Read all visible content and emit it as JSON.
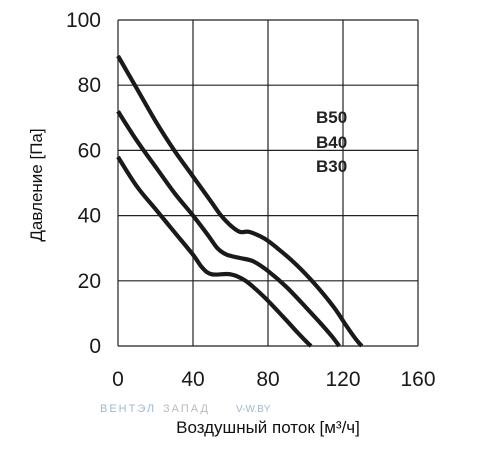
{
  "chart_data": {
    "type": "line",
    "xlabel": "Воздушный поток [м³/ч]",
    "ylabel": "Давление [Па]",
    "xlim": [
      0,
      160
    ],
    "ylim": [
      0,
      100
    ],
    "x_ticks": [
      "0",
      "40",
      "80",
      "120",
      "160"
    ],
    "y_ticks": [
      "0",
      "20",
      "40",
      "60",
      "80",
      "100"
    ],
    "grid": true,
    "legend_position": "upper-right",
    "series": [
      {
        "name": "B50",
        "points": [
          [
            0,
            89
          ],
          [
            10,
            79
          ],
          [
            20,
            69
          ],
          [
            30,
            60
          ],
          [
            40,
            52
          ],
          [
            50,
            44
          ],
          [
            55,
            40
          ],
          [
            60,
            37
          ],
          [
            65,
            35
          ],
          [
            70,
            35
          ],
          [
            78,
            33
          ],
          [
            85,
            30
          ],
          [
            95,
            25
          ],
          [
            105,
            19
          ],
          [
            115,
            12
          ],
          [
            122,
            6
          ],
          [
            127,
            2
          ],
          [
            130,
            0
          ]
        ]
      },
      {
        "name": "B40",
        "points": [
          [
            0,
            72
          ],
          [
            10,
            63
          ],
          [
            20,
            55
          ],
          [
            30,
            47
          ],
          [
            40,
            40
          ],
          [
            48,
            34
          ],
          [
            53,
            30
          ],
          [
            58,
            28
          ],
          [
            65,
            27
          ],
          [
            72,
            26
          ],
          [
            80,
            23
          ],
          [
            90,
            18
          ],
          [
            100,
            12
          ],
          [
            108,
            7
          ],
          [
            114,
            3
          ],
          [
            118,
            0
          ]
        ]
      },
      {
        "name": "B30",
        "points": [
          [
            0,
            58
          ],
          [
            10,
            49
          ],
          [
            20,
            42
          ],
          [
            30,
            35
          ],
          [
            40,
            28
          ],
          [
            45,
            24
          ],
          [
            50,
            22
          ],
          [
            60,
            22
          ],
          [
            68,
            20
          ],
          [
            78,
            15
          ],
          [
            88,
            9
          ],
          [
            96,
            4
          ],
          [
            101,
            1
          ],
          [
            103,
            0
          ]
        ]
      }
    ],
    "line_color": "#1a1a1a"
  },
  "watermark": {
    "brand_part1": "ВЕНТЭЛ",
    "brand_part2": "ЗАПАД",
    "site": "V-W.BY"
  }
}
